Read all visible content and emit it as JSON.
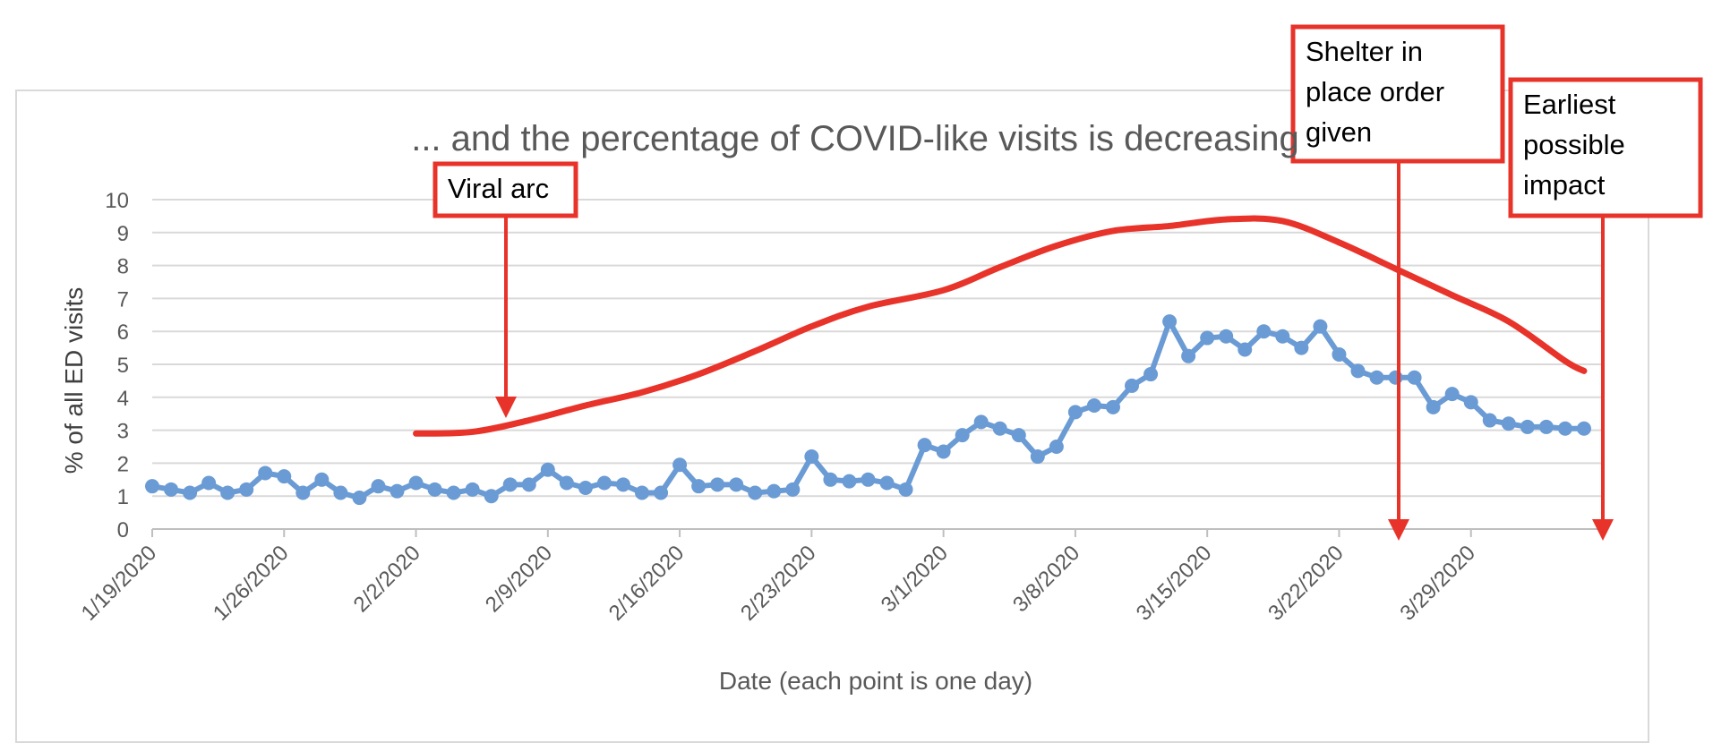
{
  "chart_data": {
    "type": "line",
    "title": "... and the percentage of COVID-like visits is decreasing",
    "xlabel": "Date (each point is one day)",
    "ylabel": "% of all ED visits",
    "ylim": [
      0,
      10
    ],
    "yticks": [
      "0",
      "1",
      "2",
      "3",
      "4",
      "5",
      "6",
      "7",
      "8",
      "9",
      "10"
    ],
    "xtick_labels": [
      "1/19/2020",
      "1/26/2020",
      "2/2/2020",
      "2/9/2020",
      "2/16/2020",
      "2/23/2020",
      "3/1/2020",
      "3/8/2020",
      "3/15/2020",
      "3/22/2020",
      "3/29/2020"
    ],
    "x_range": [
      "1/19/2020",
      "4/5/2020"
    ],
    "grid": true,
    "series": [
      {
        "color": "#6a9bd4",
        "marker": "circle",
        "x": [
          "1/19",
          "1/20",
          "1/21",
          "1/22",
          "1/23",
          "1/24",
          "1/25",
          "1/26",
          "1/27",
          "1/28",
          "1/29",
          "1/30",
          "1/31",
          "2/1",
          "2/2",
          "2/3",
          "2/4",
          "2/5",
          "2/6",
          "2/7",
          "2/8",
          "2/9",
          "2/10",
          "2/11",
          "2/12",
          "2/13",
          "2/14",
          "2/15",
          "2/16",
          "2/17",
          "2/18",
          "2/19",
          "2/20",
          "2/21",
          "2/22",
          "2/23",
          "2/24",
          "2/25",
          "2/26",
          "2/27",
          "2/28",
          "2/29",
          "3/1",
          "3/2",
          "3/3",
          "3/4",
          "3/5",
          "3/6",
          "3/7",
          "3/8",
          "3/9",
          "3/10",
          "3/11",
          "3/12",
          "3/13",
          "3/14",
          "3/15",
          "3/16",
          "3/17",
          "3/18",
          "3/19",
          "3/20",
          "3/21",
          "3/22",
          "3/23",
          "3/24",
          "3/25",
          "3/26",
          "3/27",
          "3/28",
          "3/29",
          "3/30",
          "3/31",
          "4/1",
          "4/2",
          "4/3",
          "4/4"
        ],
        "values": [
          1.3,
          1.2,
          1.1,
          1.4,
          1.1,
          1.2,
          1.7,
          1.6,
          1.1,
          1.5,
          1.1,
          0.95,
          1.3,
          1.15,
          1.4,
          1.2,
          1.1,
          1.2,
          1.0,
          1.35,
          1.35,
          1.8,
          1.4,
          1.25,
          1.4,
          1.35,
          1.1,
          1.1,
          1.95,
          1.3,
          1.35,
          1.35,
          1.1,
          1.15,
          1.2,
          2.2,
          1.5,
          1.45,
          1.5,
          1.4,
          1.2,
          2.55,
          2.35,
          2.85,
          3.25,
          3.05,
          2.85,
          2.2,
          2.5,
          3.55,
          3.75,
          3.7,
          4.35,
          4.7,
          6.3,
          5.25,
          5.8,
          5.85,
          5.45,
          6.0,
          5.85,
          5.5,
          6.15,
          5.3,
          4.8,
          4.6,
          4.6,
          4.6,
          3.7,
          4.1,
          3.85,
          3.3,
          3.2,
          3.1,
          3.1,
          3.05,
          3.05
        ]
      },
      {
        "name": "Viral arc",
        "color": "#e8332a",
        "x": [
          "2/2",
          "2/5",
          "2/8",
          "2/11",
          "2/14",
          "2/17",
          "2/20",
          "2/23",
          "2/26",
          "3/1",
          "3/4",
          "3/7",
          "3/10",
          "3/13",
          "3/16",
          "3/19",
          "3/22",
          "3/25",
          "3/28",
          "3/31",
          "4/3",
          "4/4"
        ],
        "values": [
          2.9,
          2.95,
          3.3,
          3.75,
          4.15,
          4.7,
          5.4,
          6.15,
          6.75,
          7.25,
          7.95,
          8.6,
          9.05,
          9.2,
          9.4,
          9.35,
          8.7,
          7.9,
          7.1,
          6.3,
          5.1,
          4.8
        ]
      }
    ],
    "annotations": [
      {
        "text": "Viral arc",
        "points_to": "2/8/2020"
      },
      {
        "text": "Shelter in place order given",
        "lines": [
          "Shelter in",
          "place order",
          "given"
        ],
        "points_to": "3/24/2020"
      },
      {
        "text": "Earliest possible impact",
        "lines": [
          "Earliest",
          "possible",
          "impact"
        ],
        "points_to": "4/4/2020"
      }
    ]
  }
}
